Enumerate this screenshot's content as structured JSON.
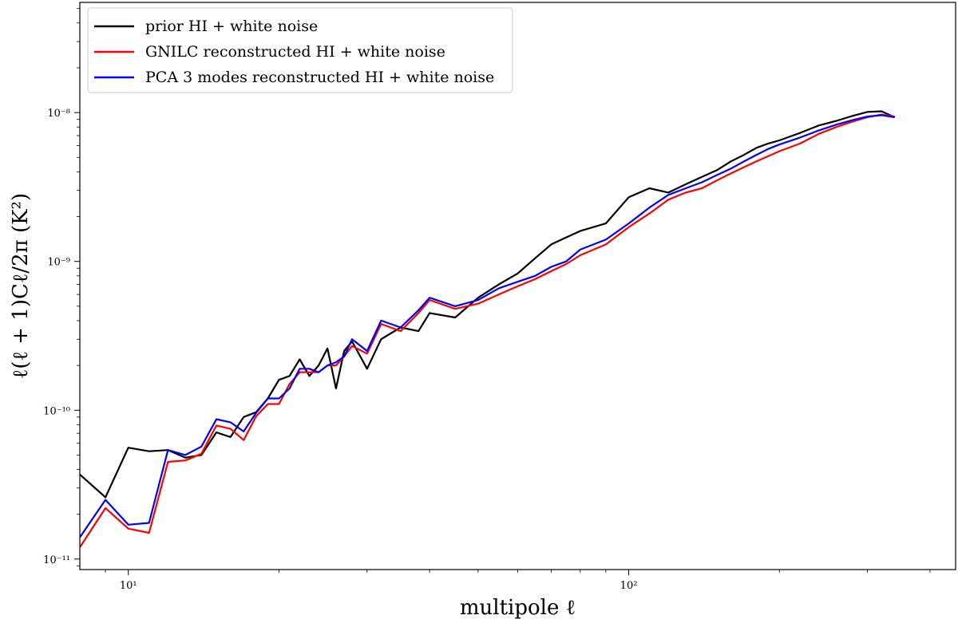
{
  "chart_data": {
    "type": "line",
    "title": "",
    "xlabel": "multipole ℓ",
    "ylabel": "ℓ(ℓ + 1)Cℓ/2π (K²)",
    "x_scale": "log",
    "y_scale": "log",
    "xlim": [
      8,
      450
    ],
    "ylim": [
      8.5e-12,
      5.5e-08
    ],
    "x_ticks": [
      {
        "value": 10,
        "label": "10¹"
      },
      {
        "value": 100,
        "label": "10²"
      }
    ],
    "y_ticks": [
      {
        "value": 1e-11,
        "label": "10⁻¹¹"
      },
      {
        "value": 1e-10,
        "label": "10⁻¹⁰"
      },
      {
        "value": 1e-09,
        "label": "10⁻⁹"
      },
      {
        "value": 1e-08,
        "label": "10⁻⁸"
      }
    ],
    "grid": false,
    "legend_position": "top-left",
    "series": [
      {
        "name": "prior HI + white noise",
        "color": "#000000",
        "x": [
          8,
          9,
          10,
          11,
          12,
          13,
          14,
          15,
          16,
          17,
          18,
          19,
          20,
          21,
          22,
          23,
          24,
          25,
          26,
          27,
          28,
          30,
          32,
          35,
          38,
          40,
          45,
          50,
          55,
          60,
          65,
          70,
          75,
          80,
          90,
          100,
          110,
          120,
          130,
          140,
          150,
          160,
          170,
          180,
          190,
          200,
          220,
          240,
          260,
          280,
          300,
          320,
          340
        ],
        "y": [
          3.7e-11,
          2.6e-11,
          5.6e-11,
          5.3e-11,
          5.4e-11,
          4.8e-11,
          5e-11,
          7.1e-11,
          6.6e-11,
          9e-11,
          9.7e-11,
          1.2e-10,
          1.6e-10,
          1.7e-10,
          2.2e-10,
          1.7e-10,
          2e-10,
          2.6e-10,
          1.4e-10,
          2.5e-10,
          2.9e-10,
          1.9e-10,
          3e-10,
          3.6e-10,
          3.4e-10,
          4.5e-10,
          4.2e-10,
          5.7e-10,
          7e-10,
          8.3e-10,
          1.05e-09,
          1.3e-09,
          1.45e-09,
          1.6e-09,
          1.8e-09,
          2.7e-09,
          3.1e-09,
          2.9e-09,
          3.3e-09,
          3.7e-09,
          4.1e-09,
          4.7e-09,
          5.2e-09,
          5.8e-09,
          6.2e-09,
          6.5e-09,
          7.3e-09,
          8.2e-09,
          8.8e-09,
          9.5e-09,
          1.01e-08,
          1.02e-08,
          9.3e-09
        ]
      },
      {
        "name": "GNILC reconstructed HI + white noise",
        "color": "#ff0000",
        "x": [
          8,
          9,
          10,
          11,
          12,
          13,
          14,
          15,
          16,
          17,
          18,
          19,
          20,
          21,
          22,
          23,
          24,
          25,
          26,
          27,
          28,
          30,
          32,
          35,
          38,
          40,
          45,
          50,
          55,
          60,
          65,
          70,
          75,
          80,
          90,
          100,
          110,
          120,
          130,
          140,
          150,
          160,
          170,
          180,
          190,
          200,
          220,
          240,
          260,
          280,
          300,
          320,
          340
        ],
        "y": [
          1.2e-11,
          2.2e-11,
          1.6e-11,
          1.5e-11,
          4.5e-11,
          4.6e-11,
          5.1e-11,
          7.9e-11,
          7.5e-11,
          6.3e-11,
          9.1e-11,
          1.1e-10,
          1.1e-10,
          1.5e-10,
          1.8e-10,
          1.8e-10,
          1.8e-10,
          2e-10,
          2e-10,
          2.3e-10,
          2.7e-10,
          2.4e-10,
          3.8e-10,
          3.4e-10,
          4.5e-10,
          5.5e-10,
          4.8e-10,
          5.2e-10,
          6e-10,
          6.8e-10,
          7.6e-10,
          8.6e-10,
          9.6e-10,
          1.1e-09,
          1.3e-09,
          1.7e-09,
          2.1e-09,
          2.6e-09,
          2.9e-09,
          3.1e-09,
          3.5e-09,
          3.9e-09,
          4.3e-09,
          4.7e-09,
          5.1e-09,
          5.5e-09,
          6.2e-09,
          7.2e-09,
          8e-09,
          8.7e-09,
          9.3e-09,
          9.7e-09,
          9.4e-09
        ]
      },
      {
        "name": "PCA 3 modes reconstructed HI + white noise",
        "color": "#0000ff",
        "x": [
          8,
          9,
          10,
          11,
          12,
          13,
          14,
          15,
          16,
          17,
          18,
          19,
          20,
          21,
          22,
          23,
          24,
          25,
          26,
          27,
          28,
          30,
          32,
          35,
          38,
          40,
          45,
          50,
          55,
          60,
          65,
          70,
          75,
          80,
          90,
          100,
          110,
          120,
          130,
          140,
          150,
          160,
          170,
          180,
          190,
          200,
          220,
          240,
          260,
          280,
          300,
          320,
          340
        ],
        "y": [
          1.4e-11,
          2.5e-11,
          1.7e-11,
          1.75e-11,
          5.4e-11,
          5e-11,
          5.7e-11,
          8.7e-11,
          8.3e-11,
          7.2e-11,
          9.6e-11,
          1.2e-10,
          1.2e-10,
          1.4e-10,
          1.9e-10,
          1.9e-10,
          1.8e-10,
          2e-10,
          2.1e-10,
          2.3e-10,
          3e-10,
          2.5e-10,
          4e-10,
          3.6e-10,
          4.7e-10,
          5.7e-10,
          5e-10,
          5.5e-10,
          6.6e-10,
          7.3e-10,
          8e-10,
          9.2e-10,
          1e-09,
          1.2e-09,
          1.4e-09,
          1.8e-09,
          2.3e-09,
          2.8e-09,
          3.1e-09,
          3.4e-09,
          3.8e-09,
          4.2e-09,
          4.7e-09,
          5.2e-09,
          5.7e-09,
          6.1e-09,
          6.8e-09,
          7.6e-09,
          8.3e-09,
          8.9e-09,
          9.4e-09,
          9.6e-09,
          9.3e-09
        ]
      }
    ]
  }
}
